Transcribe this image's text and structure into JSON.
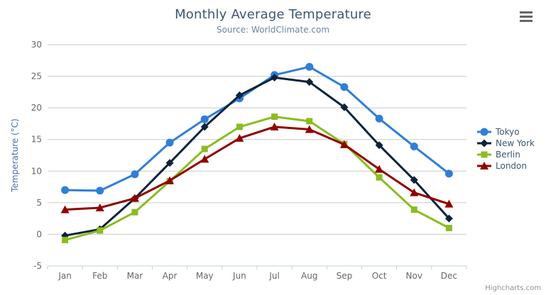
{
  "header": {
    "title": "Monthly Average Temperature",
    "subtitle": "Source: WorldClimate.com"
  },
  "toolbar": {
    "context_menu_icon": "hamburger-menu-icon"
  },
  "credit": {
    "label": "Highcharts.com"
  },
  "chart_data": {
    "type": "line",
    "title": "Monthly Average Temperature",
    "subtitle": "Source: WorldClimate.com",
    "categories": [
      "Jan",
      "Feb",
      "Mar",
      "Apr",
      "May",
      "Jun",
      "Jul",
      "Aug",
      "Sep",
      "Oct",
      "Nov",
      "Dec"
    ],
    "series": [
      {
        "name": "Tokyo",
        "color": "#2f7ed8",
        "marker": "circle",
        "values": [
          7.0,
          6.9,
          9.5,
          14.5,
          18.2,
          21.5,
          25.2,
          26.5,
          23.3,
          18.3,
          13.9,
          9.6
        ]
      },
      {
        "name": "New York",
        "color": "#0d233a",
        "marker": "diamond",
        "values": [
          -0.2,
          0.8,
          5.7,
          11.3,
          17.0,
          22.0,
          24.8,
          24.1,
          20.1,
          14.1,
          8.6,
          2.5
        ]
      },
      {
        "name": "Berlin",
        "color": "#8bbc21",
        "marker": "square",
        "values": [
          -0.9,
          0.6,
          3.5,
          8.4,
          13.5,
          17.0,
          18.6,
          17.9,
          14.3,
          9.0,
          3.9,
          1.0
        ]
      },
      {
        "name": "London",
        "color": "#910000",
        "marker": "triangle",
        "values": [
          3.9,
          4.2,
          5.7,
          8.5,
          11.9,
          15.2,
          17.0,
          16.6,
          14.2,
          10.3,
          6.6,
          4.8
        ]
      }
    ],
    "xlabel": "",
    "ylabel": "Temperature (°C)",
    "ylim": [
      -5,
      30
    ],
    "yticks": [
      -5,
      0,
      5,
      10,
      15,
      20,
      25,
      30
    ],
    "grid": true,
    "legend_position": "right"
  },
  "colors": {
    "title_text": "#3E576F",
    "subtitle_text": "#6D869F",
    "axis_title": "#4572A7",
    "tick_label": "#666666",
    "gridline": "#C9C9C9",
    "axis_line": "#C0D0E0",
    "legend_text": "#3E576F",
    "credit_text": "#909090",
    "menu_icon": "#666666"
  }
}
